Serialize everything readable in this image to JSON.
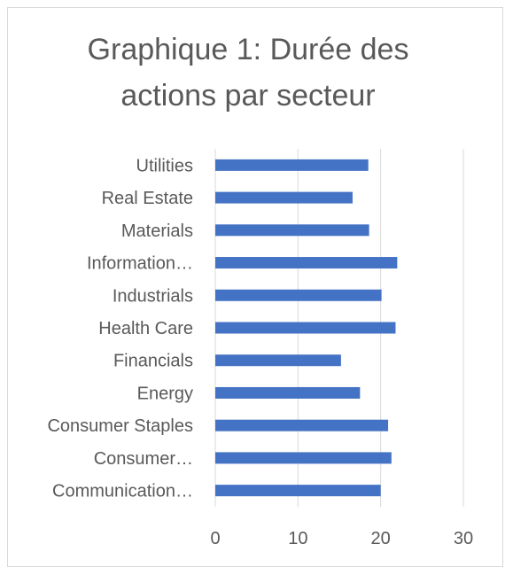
{
  "chart_data": {
    "type": "bar",
    "orientation": "horizontal",
    "title": "Graphique 1: Durée des actions par secteur",
    "categories": [
      "Utilities",
      "Real Estate",
      "Materials",
      "Information…",
      "Industrials",
      "Health Care",
      "Financials",
      "Energy",
      "Consumer Staples",
      "Consumer…",
      "Communication…"
    ],
    "values": [
      18.5,
      16.6,
      18.6,
      22.0,
      20.1,
      21.8,
      15.2,
      17.5,
      20.9,
      21.3,
      20.0
    ],
    "xlim": [
      0,
      30
    ],
    "xticks": [
      "0",
      "10",
      "20",
      "30"
    ],
    "grid": "vertical",
    "legend": "none",
    "bar_color": "#4472c4",
    "grid_color": "#d9d9d9"
  }
}
